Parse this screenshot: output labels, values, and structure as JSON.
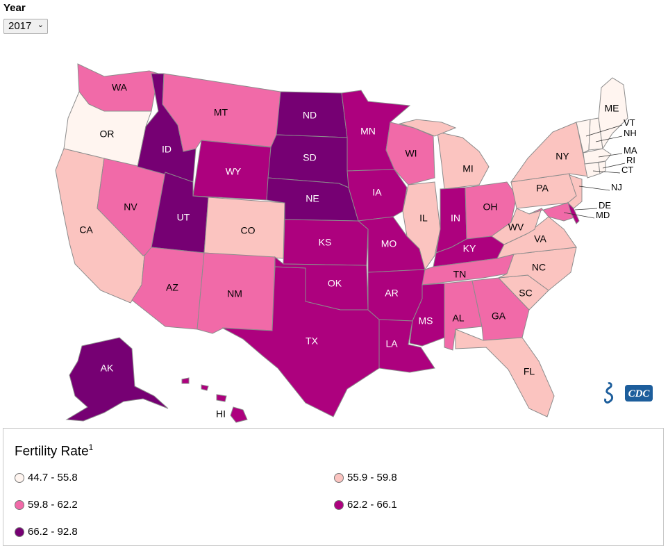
{
  "controls": {
    "year_label": "Year",
    "year_selected": "2017"
  },
  "legend": {
    "title": "Fertility Rate",
    "title_sup": "1",
    "bins": [
      {
        "label": "44.7 - 55.8",
        "color": "#fff5f0"
      },
      {
        "label": "55.9 - 59.8",
        "color": "#fbc4c0"
      },
      {
        "label": "59.8 - 62.2",
        "color": "#f16aa8"
      },
      {
        "label": "62.2 - 66.1",
        "color": "#ad017e"
      },
      {
        "label": "66.2 - 92.8",
        "color": "#760073"
      }
    ]
  },
  "states": {
    "WA": "WA",
    "OR": "OR",
    "CA": "CA",
    "NV": "NV",
    "ID": "ID",
    "MT": "MT",
    "WY": "WY",
    "UT": "UT",
    "AZ": "AZ",
    "CO": "CO",
    "NM": "NM",
    "ND": "ND",
    "SD": "SD",
    "NE": "NE",
    "KS": "KS",
    "OK": "OK",
    "TX": "TX",
    "MN": "MN",
    "IA": "IA",
    "MO": "MO",
    "AR": "AR",
    "LA": "LA",
    "WI": "WI",
    "IL": "IL",
    "MI": "MI",
    "IN": "IN",
    "OH": "OH",
    "KY": "KY",
    "TN": "TN",
    "MS": "MS",
    "AL": "AL",
    "GA": "GA",
    "FL": "FL",
    "SC": "SC",
    "NC": "NC",
    "VA": "VA",
    "WV": "WV",
    "PA": "PA",
    "NY": "NY",
    "ME": "ME",
    "VT": "VT",
    "NH": "NH",
    "MA": "MA",
    "RI": "RI",
    "CT": "CT",
    "NJ": "NJ",
    "DE": "DE",
    "MD": "MD",
    "AK": "AK",
    "HI": "HI"
  },
  "logo_text": "CDC"
}
